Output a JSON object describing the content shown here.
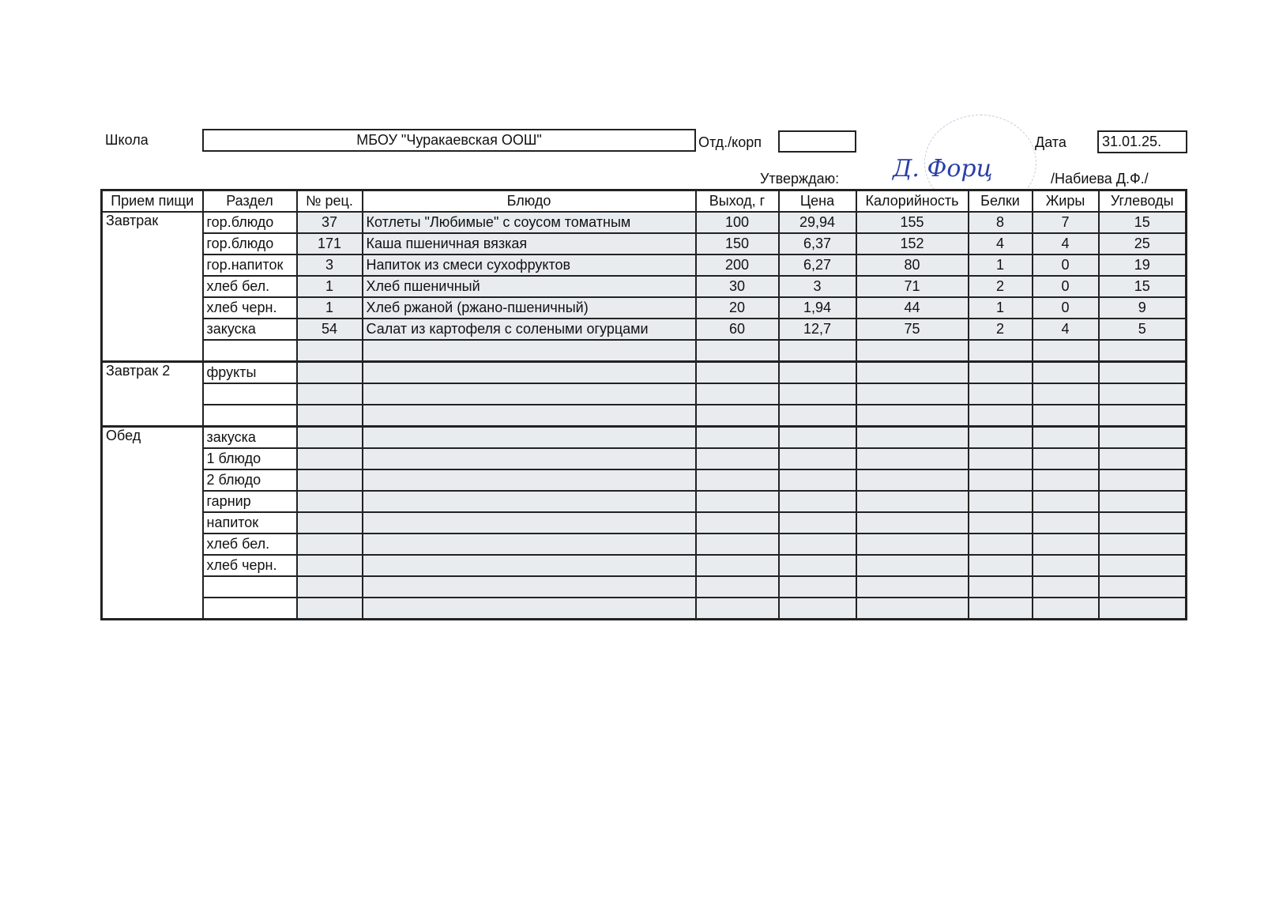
{
  "header": {
    "school_label": "Школа",
    "school_value": "МБОУ  \"Чуракаевская  ООШ\"",
    "dept_label": "Отд./корп",
    "dept_value": "",
    "date_label": "Дата",
    "date_value": "31.01.25.",
    "approve_label": "Утверждаю:",
    "signature": "Д. Форц",
    "approver": "/Набиева Д.Ф./"
  },
  "table": {
    "columns": [
      "Прием пищи",
      "Раздел",
      "№ рец.",
      "Блюдо",
      "Выход, г",
      "Цена",
      "Калорийность",
      "Белки",
      "Жиры",
      "Углеводы"
    ],
    "groups": [
      {
        "meal": "Завтрак",
        "rows": [
          [
            "гор.блюдо",
            "37",
            "Котлеты \"Любимые\" с соусом томатным",
            "100",
            "29,94",
            "155",
            "8",
            "7",
            "15"
          ],
          [
            "гор.блюдо",
            "171",
            "Каша пшеничная вязкая",
            "150",
            "6,37",
            "152",
            "4",
            "4",
            "25"
          ],
          [
            "гор.напиток",
            "3",
            "Напиток из смеси сухофруктов",
            "200",
            "6,27",
            "80",
            "1",
            "0",
            "19"
          ],
          [
            "хлеб бел.",
            "1",
            "Хлеб пшеничный",
            "30",
            "3",
            "71",
            "2",
            "0",
            "15"
          ],
          [
            "хлеб черн.",
            "1",
            "Хлеб ржаной (ржано-пшеничный)",
            "20",
            "1,94",
            "44",
            "1",
            "0",
            "9"
          ],
          [
            "закуска",
            "54",
            "Салат из картофеля с солеными огурцами",
            "60",
            "12,7",
            "75",
            "2",
            "4",
            "5"
          ],
          [
            "",
            "",
            "",
            "",
            "",
            "",
            "",
            "",
            ""
          ]
        ]
      },
      {
        "meal": "Завтрак 2",
        "rows": [
          [
            "фрукты",
            "",
            "",
            "",
            "",
            "",
            "",
            "",
            ""
          ],
          [
            "",
            "",
            "",
            "",
            "",
            "",
            "",
            "",
            ""
          ],
          [
            "",
            "",
            "",
            "",
            "",
            "",
            "",
            "",
            ""
          ]
        ]
      },
      {
        "meal": "Обед",
        "rows": [
          [
            "закуска",
            "",
            "",
            "",
            "",
            "",
            "",
            "",
            ""
          ],
          [
            "1 блюдо",
            "",
            "",
            "",
            "",
            "",
            "",
            "",
            ""
          ],
          [
            "2 блюдо",
            "",
            "",
            "",
            "",
            "",
            "",
            "",
            ""
          ],
          [
            "гарнир",
            "",
            "",
            "",
            "",
            "",
            "",
            "",
            ""
          ],
          [
            "напиток",
            "",
            "",
            "",
            "",
            "",
            "",
            "",
            ""
          ],
          [
            "хлеб бел.",
            "",
            "",
            "",
            "",
            "",
            "",
            "",
            ""
          ],
          [
            "хлеб черн.",
            "",
            "",
            "",
            "",
            "",
            "",
            "",
            ""
          ],
          [
            "",
            "",
            "",
            "",
            "",
            "",
            "",
            "",
            ""
          ],
          [
            "",
            "",
            "",
            "",
            "",
            "",
            "",
            "",
            ""
          ]
        ]
      }
    ]
  }
}
